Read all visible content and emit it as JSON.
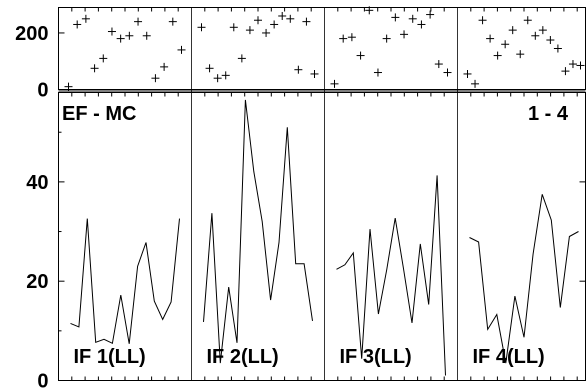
{
  "chart_data": {
    "type": "line",
    "top_label": "EF - MC",
    "range_label": "1 - 4",
    "top": {
      "type": "scatter",
      "ylim": [
        0,
        290
      ],
      "yticks": [
        0,
        200
      ],
      "ytick_labels": [
        "0",
        "200"
      ]
    },
    "main": {
      "ylim": [
        0,
        58
      ],
      "yticks": [
        0,
        20,
        40
      ],
      "ytick_labels": [
        "0",
        "20",
        "40"
      ]
    },
    "panels": [
      {
        "name": "IF 1(LL)",
        "line": [
          11.5,
          10.8,
          32.6,
          7.7,
          8.3,
          7.5,
          17.2,
          7.4,
          23.0,
          27.8,
          16.0,
          12.3,
          15.8,
          32.6
        ],
        "scatter": [
          10,
          230,
          250,
          75,
          110,
          205,
          180,
          190,
          240,
          190,
          40,
          80,
          240,
          140
        ]
      },
      {
        "name": "IF 2(LL)",
        "line": [
          11.8,
          33.7,
          3.5,
          18.8,
          7.6,
          56.5,
          42.1,
          32.0,
          16.2,
          27.8,
          51.0,
          23.5,
          23.5,
          12.0
        ],
        "scatter": [
          220,
          75,
          40,
          50,
          220,
          110,
          210,
          245,
          200,
          230,
          260,
          250,
          70,
          240,
          55
        ]
      },
      {
        "name": "IF 3(LL)",
        "line": [
          22.4,
          23.3,
          25.7,
          4.4,
          30.5,
          13.4,
          22.4,
          32.7,
          22.4,
          11.6,
          27.5,
          15.3,
          41.3,
          1.0
        ],
        "scatter": [
          20,
          180,
          185,
          120,
          280,
          60,
          180,
          255,
          195,
          250,
          230,
          265,
          90,
          60
        ]
      },
      {
        "name": "IF 4(LL)",
        "line": [
          28.8,
          27.9,
          10.3,
          13.3,
          3.5,
          17.0,
          8.7,
          25.5,
          37.5,
          32.3,
          14.7,
          29.0,
          30.0
        ],
        "scatter": [
          55,
          20,
          245,
          180,
          120,
          160,
          210,
          125,
          245,
          190,
          210,
          175,
          145,
          65,
          90,
          85
        ]
      }
    ]
  }
}
